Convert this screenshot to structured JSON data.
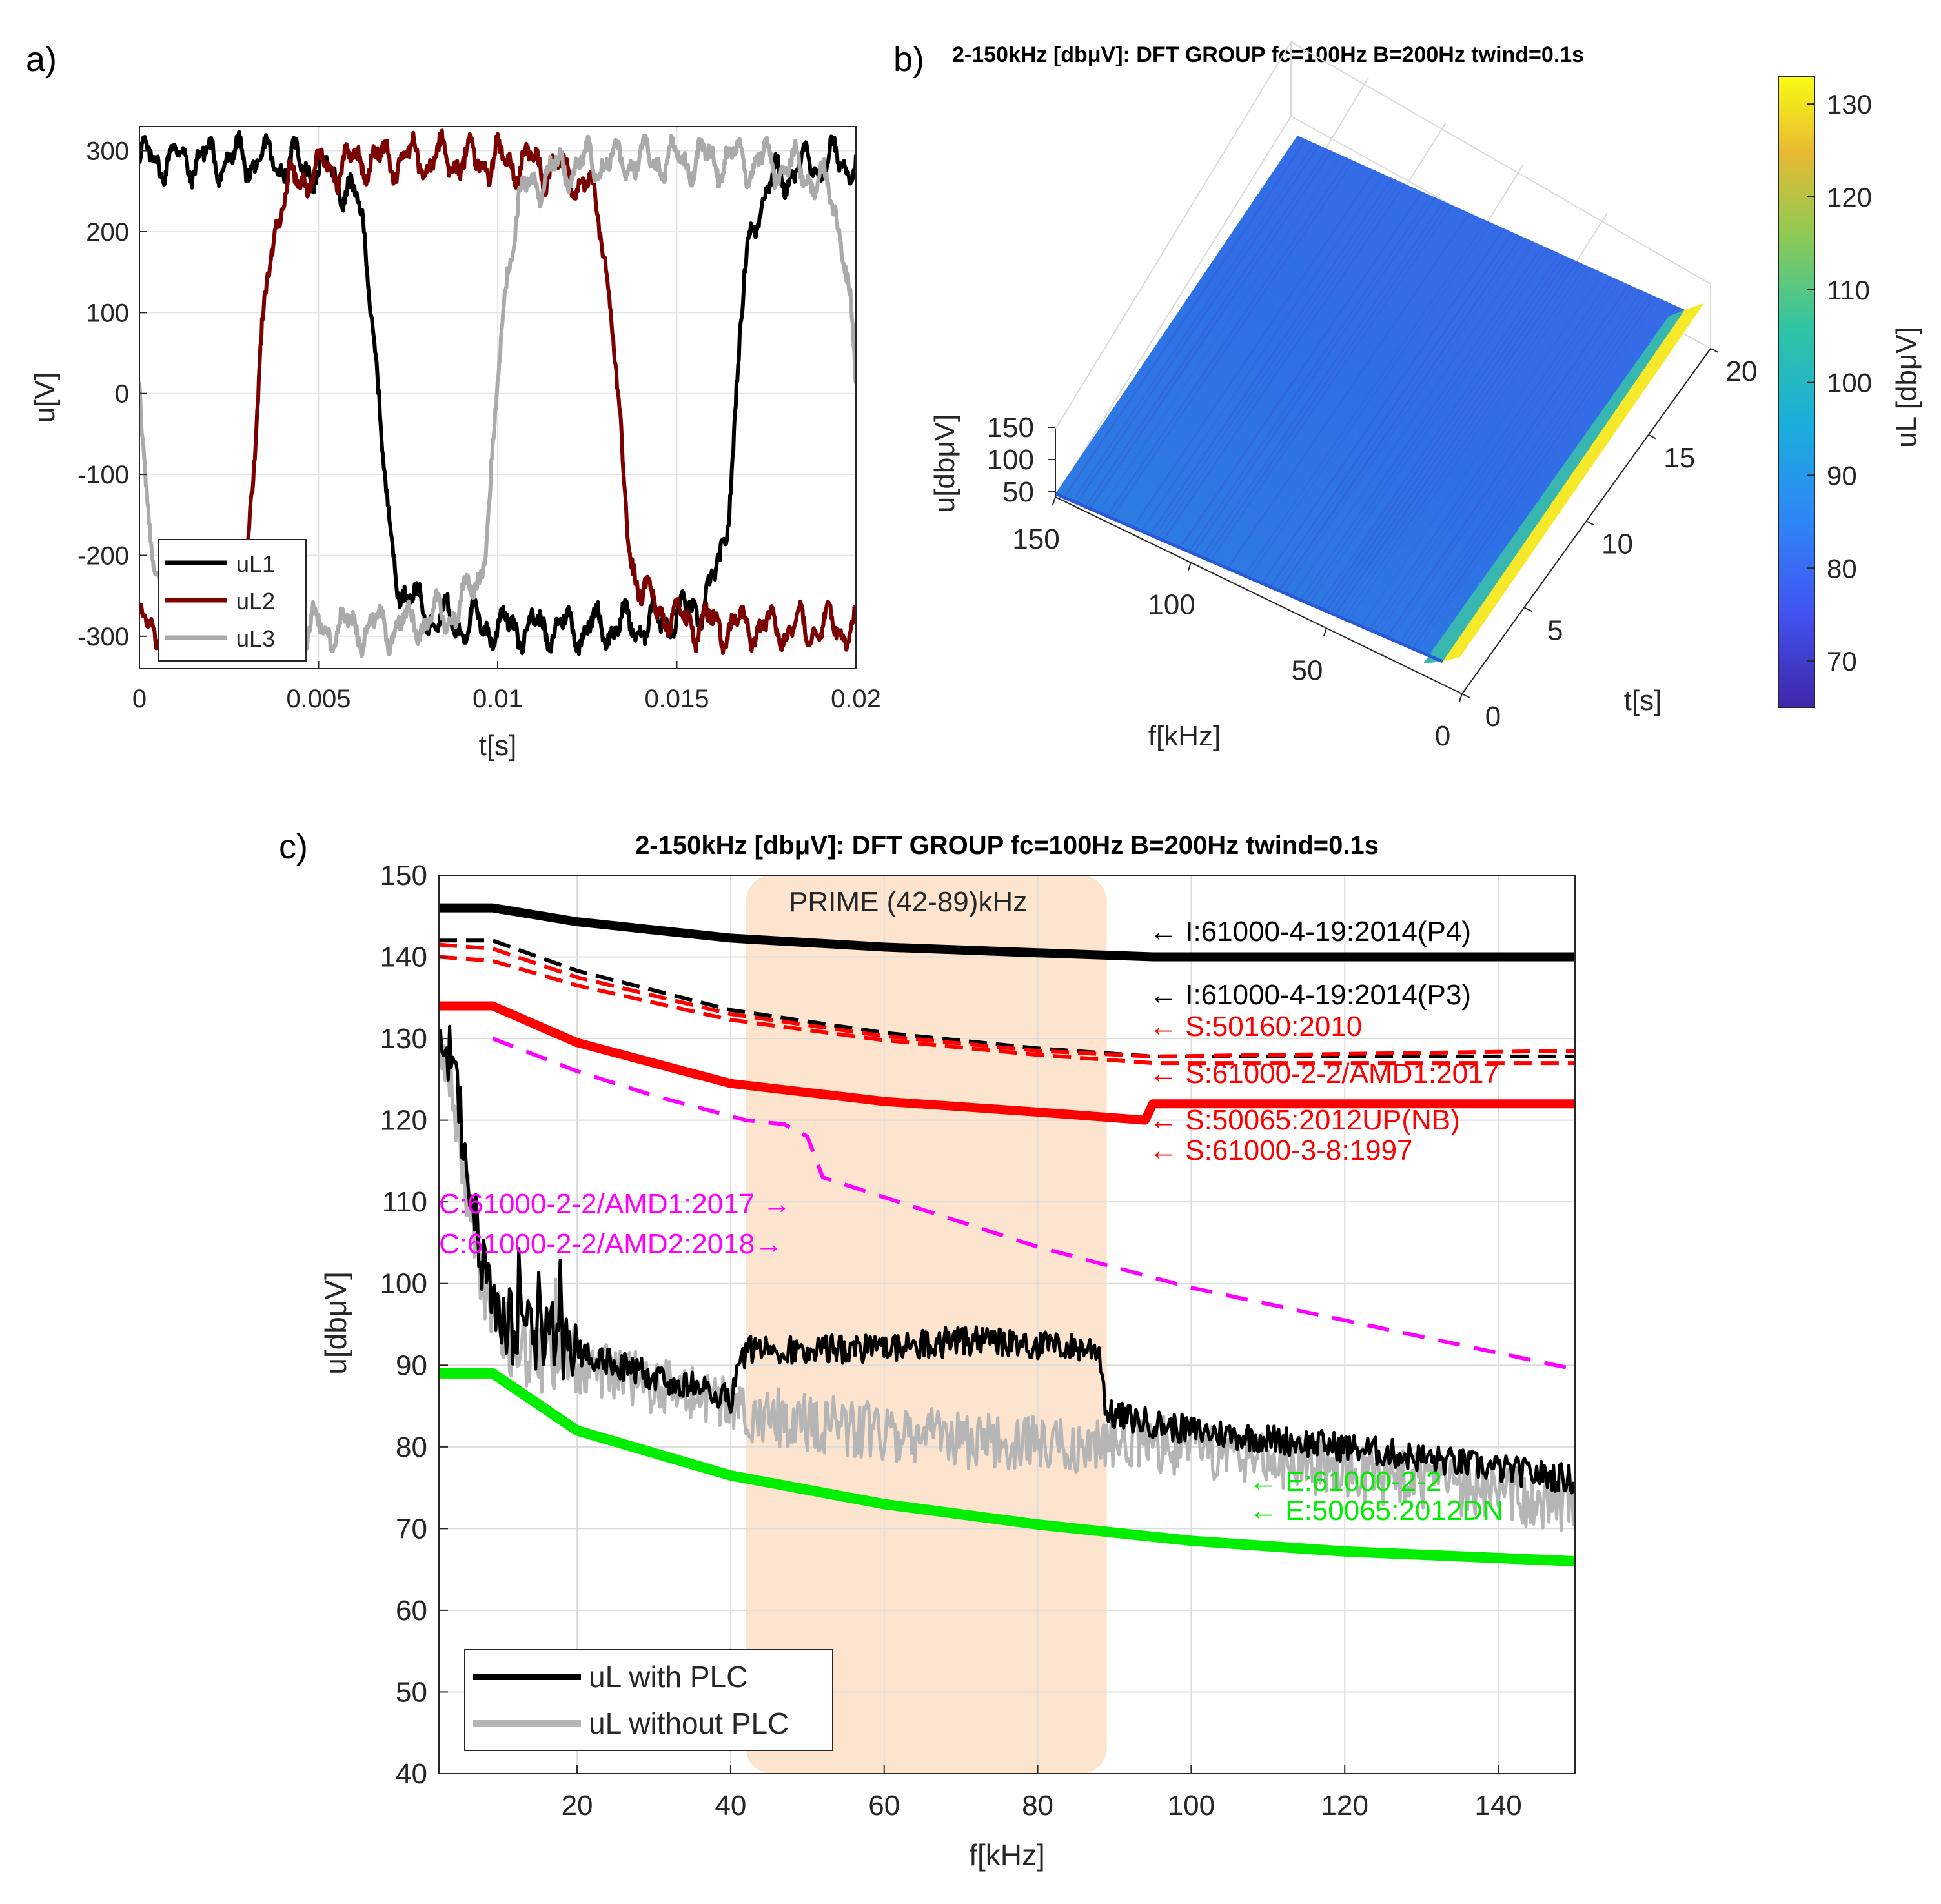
{
  "chart_data": [
    {
      "panel": "a)",
      "type": "line",
      "xlabel": "t[s]",
      "ylabel": "u[V]",
      "xlim": [
        0,
        0.02
      ],
      "ylim": [
        -340,
        330
      ],
      "xticks": [
        0,
        0.005,
        0.01,
        0.015,
        0.02
      ],
      "xtick_labels": [
        "0",
        "0.005",
        "0.01",
        "0.015",
        "0.02"
      ],
      "yticks": [
        300,
        200,
        100,
        0,
        -100,
        -200,
        -300
      ],
      "ytick_labels": [
        "300",
        "200",
        "100",
        "0",
        "-100",
        "-200",
        "-300"
      ],
      "legend": "bottom-left",
      "grid": true,
      "series": [
        {
          "name": "uL1",
          "color": "#000000",
          "phase_deg": 0
        },
        {
          "name": "uL2",
          "color": "#7b0000",
          "phase_deg": -120
        },
        {
          "name": "uL3",
          "color": "#aaaaaa",
          "phase_deg": 120
        }
      ],
      "waveform": {
        "frequency_hz": 50,
        "plateau_v": 300,
        "duration_s": 0.02
      }
    },
    {
      "panel": "b)",
      "type": "surface",
      "title": "2-150kHz [dbμV]: DFT GROUP fc=100Hz B=200Hz twind=0.1s",
      "xlabel": "f[kHz]",
      "ylabel": "t[s]",
      "zlabel": "u[dbμV]",
      "x_ticks": [
        "150",
        "100",
        "50",
        "0"
      ],
      "y_ticks": [
        "0",
        "5",
        "10",
        "15",
        "20"
      ],
      "z_ticks": [
        "150",
        "100",
        "50"
      ],
      "colorbar_label": "uL [dbμV]",
      "colorbar_ticks": [
        "130",
        "120",
        "110",
        "100",
        "90",
        "80",
        "70"
      ],
      "colorbar_range": [
        65,
        133
      ],
      "xlim": [
        0,
        150
      ],
      "ylim": [
        0,
        20
      ],
      "surface_level_dbuv": 78,
      "edge_peak_dbuv": 133
    },
    {
      "panel": "c)",
      "type": "line",
      "title": "2-150kHz [dbμV]: DFT GROUP fc=100Hz B=200Hz twind=0.1s",
      "xlabel": "f[kHz]",
      "ylabel": "u[dbμV]",
      "xlim": [
        2,
        150
      ],
      "ylim": [
        40,
        150
      ],
      "xticks": [
        "20",
        "40",
        "60",
        "80",
        "100",
        "120",
        "140"
      ],
      "yticks": [
        "150",
        "140",
        "130",
        "120",
        "110",
        "100",
        "90",
        "80",
        "70",
        "60",
        "50",
        "40"
      ],
      "grid": true,
      "legend": "bottom-left",
      "band": {
        "label": "PRIME (42-89)kHz",
        "from": 42,
        "to": 89,
        "color": "#fce4cf"
      },
      "limit_lines": [
        {
          "name": "I:61000-4-19:2014(P4)",
          "color": "#000000",
          "x": [
            2,
            9,
            20,
            40,
            60,
            80,
            95,
            150
          ],
          "y": [
            146,
            146,
            144.3,
            142.3,
            141.2,
            140.5,
            140,
            140
          ]
        },
        {
          "name": "I:61000-4-19:2014(P3)",
          "color": "#000000",
          "x": [
            2,
            9,
            20,
            40,
            60,
            80,
            95,
            150
          ],
          "y": [
            142,
            142,
            138.3,
            133.5,
            130.7,
            128.8,
            127.8,
            127.8
          ]
        },
        {
          "name": "S:50160:2010",
          "color": "#ff0000",
          "x": [
            2,
            9,
            20,
            40,
            60,
            80,
            95,
            150
          ],
          "y": [
            141.5,
            141,
            137.5,
            133,
            130.3,
            128.5,
            127.8,
            128.5
          ]
        },
        {
          "name": "S:61000-2-2/AMD1:2017",
          "color": "#ff0000",
          "x": [
            2,
            9,
            20,
            40,
            60,
            80,
            95,
            150
          ],
          "y": [
            140,
            139.5,
            136.5,
            132.3,
            129.8,
            128,
            127,
            127
          ]
        },
        {
          "name": "S:50065:2012UP(NB)",
          "color": "#ff0000",
          "x": [
            2,
            9,
            20,
            40,
            60,
            80,
            94,
            95,
            150
          ],
          "y": [
            134,
            134,
            129.5,
            124.5,
            122.3,
            121,
            120,
            122,
            122
          ]
        },
        {
          "name": "S:61000-3-8:1997",
          "color": "#ff0000",
          "x": [],
          "y": []
        },
        {
          "name": "C:61000-2-2/AMD1:2017",
          "color": "#ff00ff",
          "x": [
            9,
            20,
            30,
            42,
            47,
            50,
            52,
            80,
            100,
            120,
            150
          ],
          "y": [
            130,
            126,
            123,
            120,
            119.5,
            118,
            113,
            104.5,
            99.5,
            95.5,
            89.5
          ]
        },
        {
          "name": "C:61000-2-2/AMD2:2018",
          "color": "#ff00ff",
          "x": [],
          "y": []
        },
        {
          "name": "E:61000-2-2",
          "color": "#00ee00",
          "x": [
            2,
            9,
            20,
            40,
            60,
            80,
            100,
            120,
            150
          ],
          "y": [
            89,
            89,
            82,
            76.5,
            73,
            70.5,
            68.5,
            67.2,
            66
          ]
        },
        {
          "name": "E:50065:2012DN",
          "color": "#00ee00",
          "x": [],
          "y": []
        }
      ],
      "measured": [
        {
          "name": "uL with PLC",
          "color": "#000000",
          "profile": {
            "f": [
              2,
              4,
              8,
              12,
              16,
              25,
              40,
              42,
              60,
              70,
              88,
              89,
              100,
              120,
              150
            ],
            "u": [
              132,
              125,
              100,
              94,
              93,
              90,
              86,
              92,
              92,
              93,
              92,
              84,
              82,
              80,
              76
            ]
          }
        },
        {
          "name": "uL without PLC",
          "color": "#b5b5b5",
          "profile": {
            "f": [
              2,
              4,
              8,
              12,
              16,
              25,
              40,
              42,
              60,
              70,
              88,
              89,
              100,
              120,
              150
            ],
            "u": [
              130,
              122,
              98,
              92,
              91,
              89,
              85,
              84,
              82,
              81,
              80,
              81,
              80,
              77,
              73
            ]
          }
        }
      ],
      "annotations": [
        {
          "text": "← I:61000-4-19:2014(P4)",
          "color": "#000000"
        },
        {
          "text": "← I:61000-4-19:2014(P3)",
          "color": "#000000"
        },
        {
          "text": "← S:50160:2010",
          "color": "#ff0000"
        },
        {
          "text": "← S:61000-2-2/AMD1:2017",
          "color": "#ff0000"
        },
        {
          "text": "← S:50065:2012UP(NB)",
          "color": "#ff0000"
        },
        {
          "text": "← S:61000-3-8:1997",
          "color": "#ff0000"
        },
        {
          "text": "C:61000-2-2/AMD1:2017 →",
          "color": "#ff00ff"
        },
        {
          "text": "C:61000-2-2/AMD2:2018→",
          "color": "#ff00ff"
        },
        {
          "text": "← E:61000-2-2",
          "color": "#00ee00"
        },
        {
          "text": "← E:50065:2012DN",
          "color": "#00ee00"
        }
      ]
    }
  ]
}
